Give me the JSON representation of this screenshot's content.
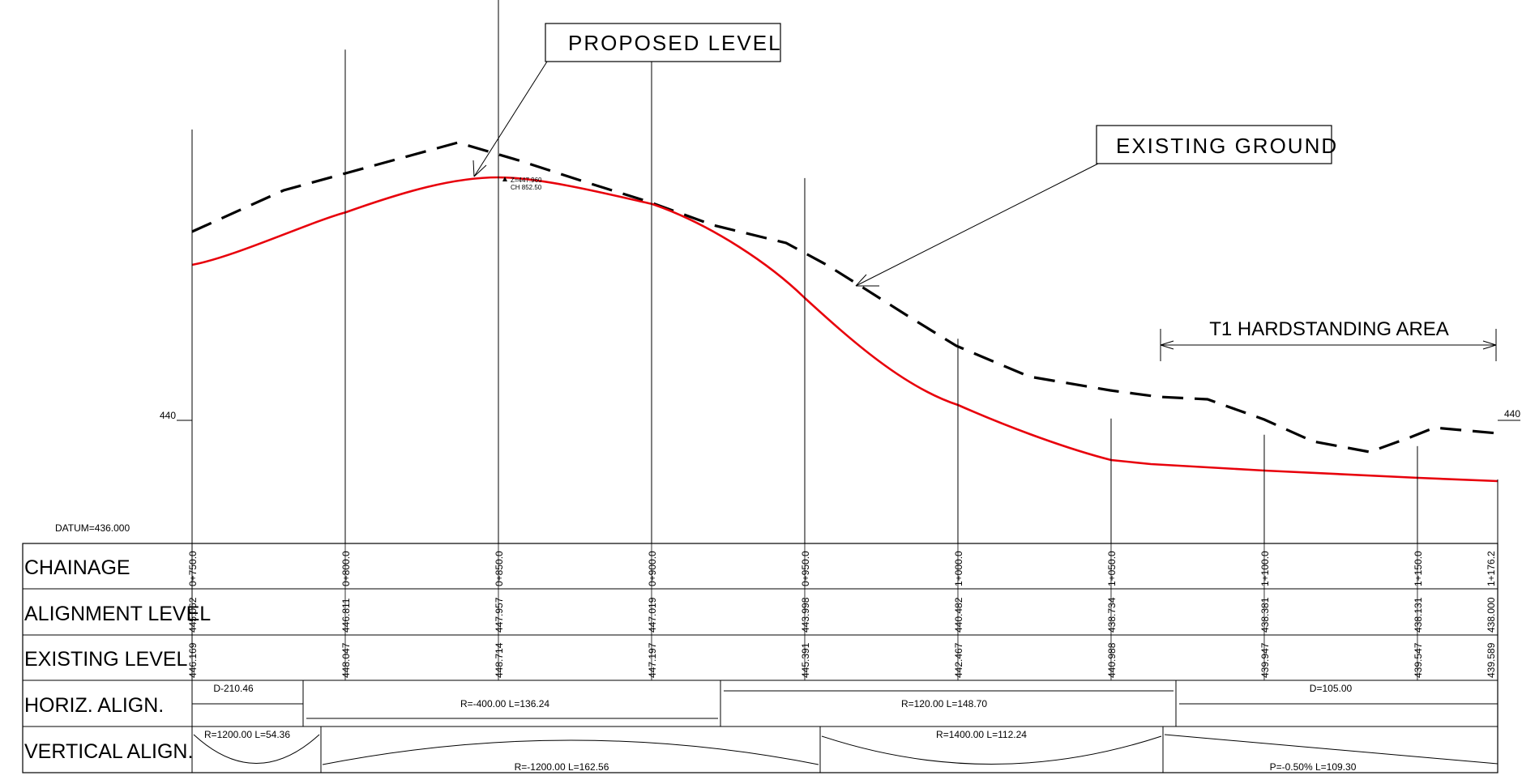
{
  "annotations": {
    "proposed_level": "PROPOSED LEVEL",
    "existing_ground": "EXISTING GROUND",
    "hardstanding": "T1 HARDSTANDING AREA",
    "datum": "DATUM=436.000",
    "level_left": "440",
    "level_right": "440",
    "high_point_z": "Z=447.960",
    "high_point_ch": "CH 852.50"
  },
  "table": {
    "row_labels": {
      "chainage": "CHAINAGE",
      "alignment_level": "ALIGNMENT LEVEL",
      "existing_level": "EXISTING LEVEL",
      "horiz_align": "HORIZ. ALIGN.",
      "vertical_align": "VERTICAL ALIGN."
    },
    "chainages": [
      "0+750.0",
      "0+800.0",
      "0+850.0",
      "0+900.0",
      "0+950.0",
      "1+000.0",
      "1+050.0",
      "1+100.0",
      "1+150.0",
      "1+176.2"
    ],
    "alignment_levels": [
      "445.062",
      "446.811",
      "447.957",
      "447.019",
      "443.998",
      "440.482",
      "438.734",
      "438.381",
      "438.131",
      "438.000"
    ],
    "existing_levels": [
      "446.169",
      "448.047",
      "448.714",
      "447.197",
      "445.391",
      "442.467",
      "440.988",
      "439.947",
      "439.547",
      "439.589"
    ],
    "horiz_align_labels": {
      "d1": "D-210.46",
      "r1": "R=-400.00  L=136.24",
      "r2": "R=120.00  L=148.70",
      "d2": "D=105.00"
    },
    "vertical_align_labels": {
      "c1": "R=1200.00  L=54.36",
      "c2": "R=-1200.00  L=162.56",
      "c3": "R=1400.00  L=112.24",
      "g1": "P=-0.50%  L=109.30"
    }
  },
  "colors": {
    "proposed_line": "#e8000b",
    "existing_line": "#000000",
    "grid": "#000000"
  },
  "chart_data": {
    "type": "line",
    "x": [
      750,
      800,
      850,
      900,
      950,
      1000,
      1050,
      1100,
      1150,
      1176.2
    ],
    "series": [
      {
        "name": "PROPOSED LEVEL",
        "values": [
          445.062,
          446.811,
          447.957,
          447.019,
          443.998,
          440.482,
          438.734,
          438.381,
          438.131,
          438.0
        ]
      },
      {
        "name": "EXISTING GROUND",
        "values": [
          446.169,
          448.047,
          448.714,
          447.197,
          445.391,
          442.467,
          440.988,
          439.947,
          439.547,
          439.589
        ]
      }
    ],
    "datum": 436.0
  }
}
